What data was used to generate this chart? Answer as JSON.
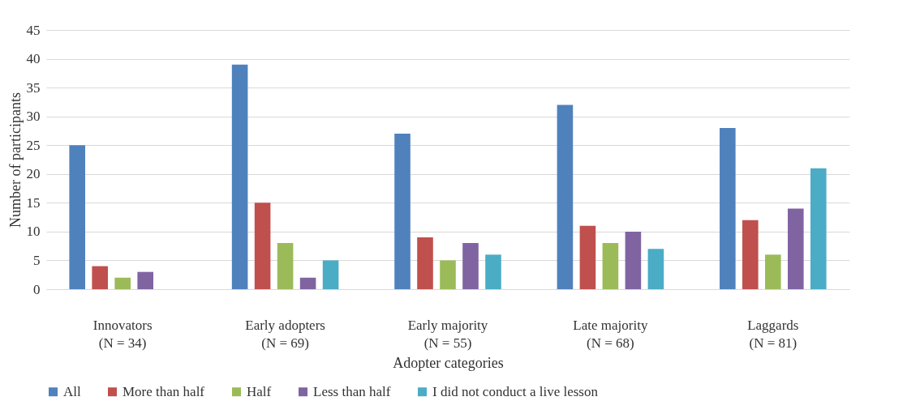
{
  "chart_data": {
    "type": "bar",
    "xlabel": "Adopter categories",
    "ylabel": "Number of participants",
    "categories": [
      "Innovators\n(N = 34)",
      "Early adopters\n(N = 69)",
      "Early majority\n(N = 55)",
      "Late majority\n(N = 68)",
      "Laggards\n(N = 81)"
    ],
    "series": [
      {
        "name": "All",
        "color": "#4f81bd",
        "values": [
          25,
          39,
          27,
          32,
          28
        ]
      },
      {
        "name": "More than half",
        "color": "#c0504d",
        "values": [
          4,
          15,
          9,
          11,
          12
        ]
      },
      {
        "name": "Half",
        "color": "#9bbb59",
        "values": [
          2,
          8,
          5,
          8,
          6
        ]
      },
      {
        "name": "Less than half",
        "color": "#8064a2",
        "values": [
          3,
          2,
          8,
          10,
          14
        ]
      },
      {
        "name": "I did not conduct a live lesson",
        "color": "#4bacc6",
        "values": [
          0,
          5,
          6,
          7,
          21
        ]
      }
    ],
    "ylim": [
      0,
      45
    ],
    "yticks": [
      0,
      5,
      10,
      15,
      20,
      25,
      30,
      35,
      40,
      45
    ],
    "grid": "y",
    "legend": "bottom"
  }
}
